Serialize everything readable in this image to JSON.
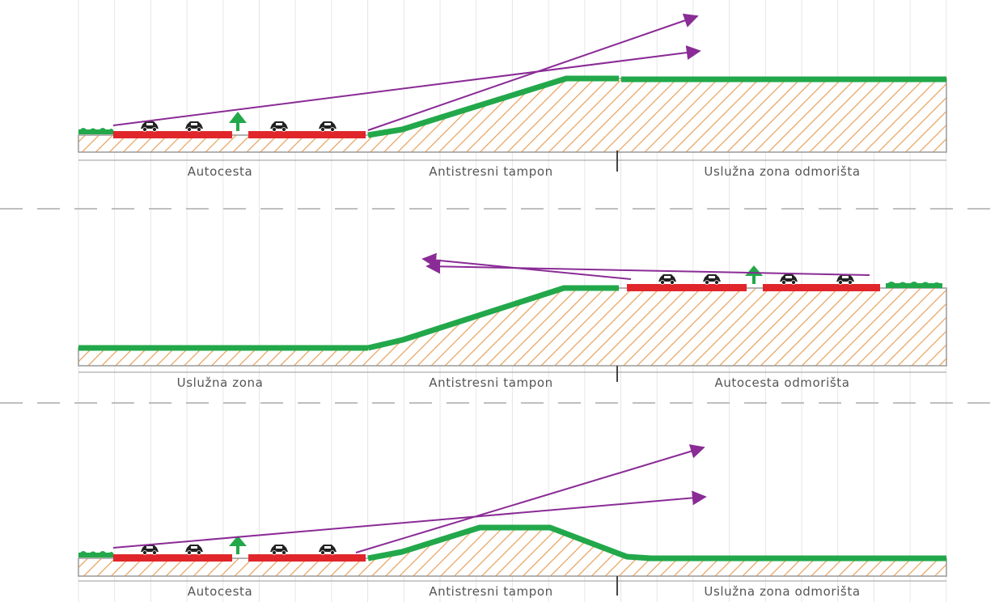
{
  "colors": {
    "background": "#ffffff",
    "grid": "#e6e6e6",
    "hatch": "#e8a05a",
    "ground_outline": "#999999",
    "vegetation": "#22a84a",
    "road": "#e0262b",
    "sightline": "#8a2b96",
    "car": "#222222",
    "separator": "#aaaaaa",
    "text": "#555555"
  },
  "icons": {
    "car": "car-icon",
    "tree": "tree-icon",
    "shrub": "shrub-icon"
  },
  "sections": [
    {
      "id": "top",
      "labels": [
        "Autocesta",
        "Antistresni tampon",
        "Uslužna zona odmorišta"
      ]
    },
    {
      "id": "middle",
      "labels": [
        "Uslužna zona",
        "Antistresni tampon",
        "Autocesta odmorišta"
      ]
    },
    {
      "id": "bottom",
      "labels": [
        "Autocesta",
        "Antistresni tampon",
        "Uslužna zona odmorišta"
      ]
    }
  ]
}
